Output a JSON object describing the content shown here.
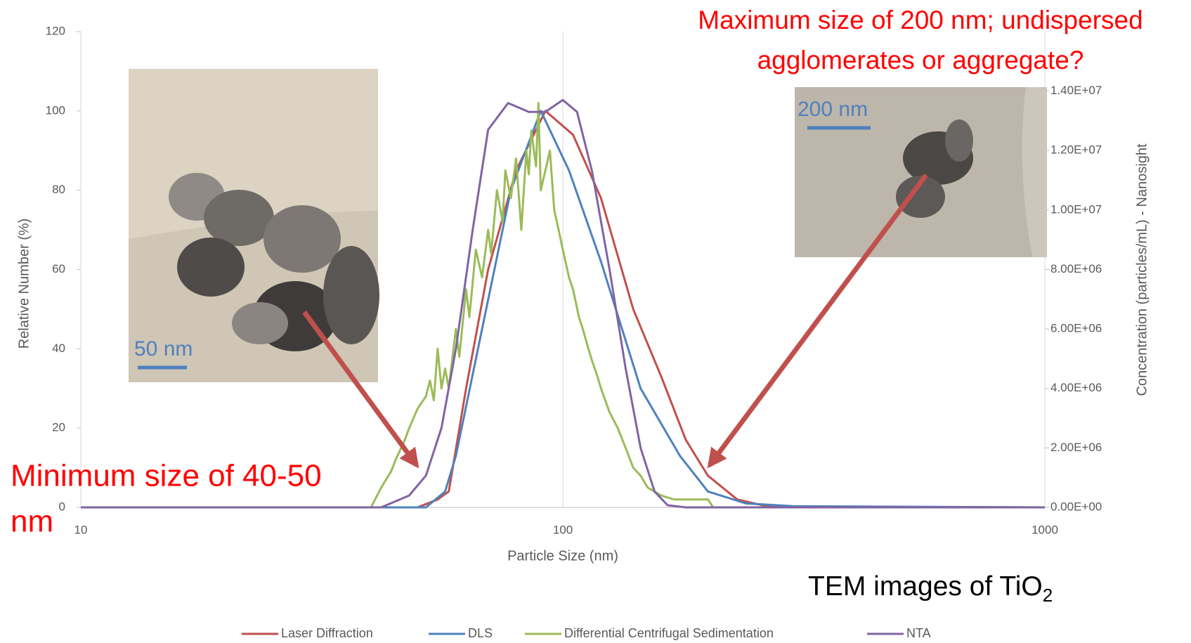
{
  "chart_data": {
    "type": "line",
    "xlabel": "Particle Size (nm)",
    "ylabel": "Relative Number (%)",
    "y2label": "Concentration (particles/mL) - Nanosight",
    "xscale": "log",
    "xlim": [
      10,
      1000
    ],
    "xticks": [
      10,
      100,
      1000
    ],
    "ylim": [
      0,
      120
    ],
    "yticks": [
      0,
      20,
      40,
      60,
      80,
      100,
      120
    ],
    "y2lim": [
      0,
      16000000
    ],
    "y2ticks": [
      {
        "value": 0,
        "label": "0.00E+00"
      },
      {
        "value": 2000000,
        "label": "2.00E+06"
      },
      {
        "value": 4000000,
        "label": "4.00E+06"
      },
      {
        "value": 6000000,
        "label": "6.00E+06"
      },
      {
        "value": 8000000,
        "label": "8.00E+06"
      },
      {
        "value": 10000000,
        "label": "1.00E+07"
      },
      {
        "value": 12000000,
        "label": "1.20E+07"
      },
      {
        "value": 14000000,
        "label": "1.40E+07"
      }
    ],
    "legend": "bottom",
    "series": [
      {
        "name": "Laser Diffraction",
        "color": "#c0504d",
        "x": [
          10,
          50,
          55,
          58,
          63,
          70,
          80,
          92,
          105,
          120,
          140,
          160,
          180,
          200,
          230,
          260,
          300,
          1000
        ],
        "values": [
          0,
          0,
          2,
          4,
          30,
          60,
          85,
          100,
          94,
          78,
          50,
          33,
          17,
          8,
          2,
          0.5,
          0.2,
          0
        ]
      },
      {
        "name": "DLS",
        "color": "#4f81bd",
        "x": [
          10,
          52,
          57,
          60,
          68,
          78,
          90,
          103,
          120,
          145,
          175,
          200,
          240,
          300,
          1000
        ],
        "values": [
          0,
          0,
          4,
          13,
          45,
          80,
          100,
          85,
          62,
          30,
          13,
          4,
          1,
          0.3,
          0
        ]
      },
      {
        "name": "Differential Centrifugal Sedimentation",
        "color": "#9bbb59",
        "x": [
          40,
          42,
          44,
          45,
          47,
          48,
          50,
          52,
          53,
          54,
          55,
          56,
          57,
          58,
          60,
          61,
          63,
          64,
          66,
          68,
          70,
          71,
          73,
          75,
          76,
          78,
          80,
          82,
          84,
          85,
          86,
          88,
          89,
          90,
          92,
          94,
          96,
          98,
          100,
          103,
          105,
          108,
          110,
          113,
          115,
          118,
          120,
          125,
          130,
          135,
          140,
          145,
          150,
          160,
          170,
          180,
          200,
          205
        ],
        "values": [
          0,
          5,
          9,
          12,
          17,
          20,
          25,
          28,
          32,
          27,
          40,
          30,
          35,
          30,
          45,
          38,
          55,
          48,
          65,
          58,
          70,
          64,
          80,
          72,
          85,
          78,
          88,
          70,
          90,
          84,
          95,
          86,
          102,
          80,
          85,
          90,
          75,
          70,
          65,
          58,
          55,
          48,
          45,
          40,
          37,
          33,
          30,
          24,
          20,
          15,
          10,
          8,
          5,
          3,
          2,
          2,
          2,
          0
        ]
      },
      {
        "name": "NTA",
        "color": "#8064a2",
        "axis": "y2",
        "x": [
          10,
          42,
          48,
          52,
          56,
          60,
          65,
          70,
          77,
          85,
          92,
          100,
          107,
          115,
          125,
          135,
          145,
          155,
          165,
          180,
          1000
        ],
        "values": [
          0,
          0,
          400000,
          1070000,
          2670000,
          5330000,
          9330000,
          12700000,
          13600000,
          13300000,
          13300000,
          13700000,
          13300000,
          11300000,
          8000000,
          4670000,
          2000000,
          530000,
          70000,
          0,
          0
        ]
      }
    ],
    "annotations": [
      {
        "lines": [
          "Maximum size of 200 nm; undispersed",
          "agglomerates or aggregate?"
        ],
        "color": "#ff0000"
      },
      {
        "lines": [
          "Minimum size of 40-50",
          "nm"
        ],
        "color": "#ff0000"
      }
    ],
    "image_labels": [
      "50 nm",
      "200 nm"
    ],
    "tem_label": {
      "text": "TEM images of TiO",
      "subscript": "2"
    }
  }
}
